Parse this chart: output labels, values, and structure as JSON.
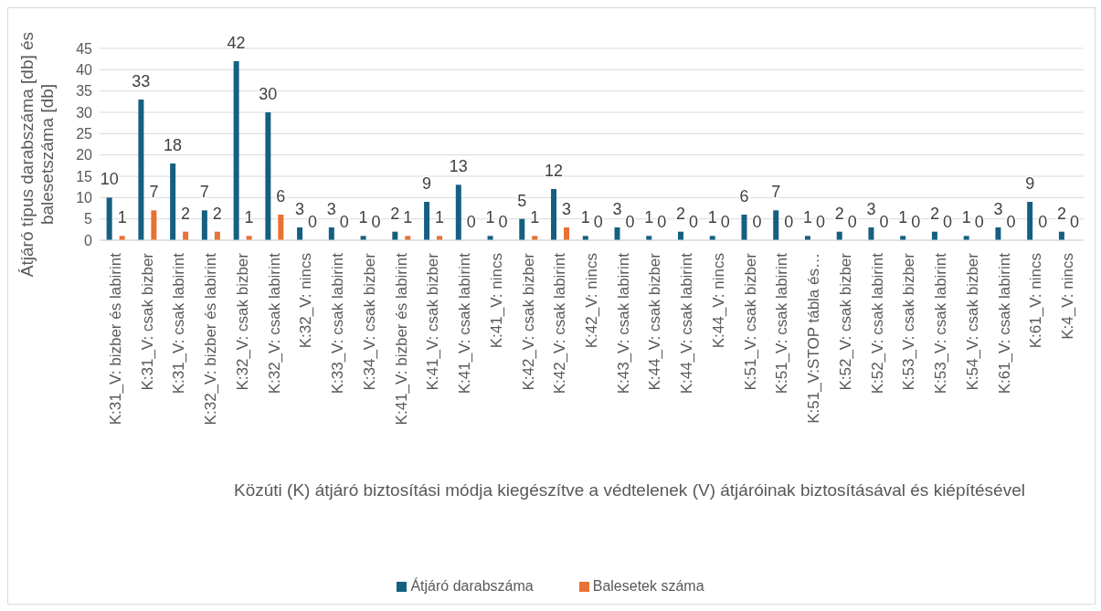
{
  "chart_data": {
    "type": "bar",
    "xlabel": "Közúti (K) átjáró biztosítási módja kiegészítve a védtelenek (V) átjáróinak biztosításával  és kiépítésével",
    "ylabel": "Átjáró típus darabszáma [db] és balesetszáma [db]",
    "categories": [
      "K:31_V: bizber és labirint",
      "K:31_V: csak bizber",
      "K:31_V: csak labirint",
      "K:32_V: bizber és labirint",
      "K:32_V: csak bizber",
      "K:32_V: csak labirint",
      "K:32_V: nincs",
      "K:33_V: csak labirint",
      "K:34_V: csak bizber",
      "K:41_V: bizber és labirint",
      "K:41_V: csak bizber",
      "K:41_V: csak labirint",
      "K:41_V: nincs",
      "K:42_V: csak bizber",
      "K:42_V: csak labirint",
      "K:42_V: nincs",
      "K:43_V: csak labirint",
      "K:44_V: csak bizber",
      "K:44_V: csak labirint",
      "K:44_V: nincs",
      "K:51_V: csak bizber",
      "K:51_V: csak labirint",
      "K:51_V:STOP tábla és…",
      "K:52_V: csak bizber",
      "K:52_V: csak labirint",
      "K:53_V: csak bizber",
      "K:53_V: csak labirint",
      "K:54_V: csak bizber",
      "K:61_V: csak labirint",
      "K:61_V: nincs",
      "K:4_V: nincs"
    ],
    "series": [
      {
        "name": "Átjáró darabszáma",
        "color": "#156082",
        "values": [
          10,
          33,
          18,
          7,
          42,
          30,
          3,
          3,
          1,
          2,
          9,
          13,
          1,
          5,
          12,
          1,
          3,
          1,
          2,
          1,
          6,
          7,
          1,
          2,
          3,
          1,
          2,
          1,
          3,
          9,
          2
        ]
      },
      {
        "name": "Balesetek száma",
        "color": "#e97132",
        "values": [
          1,
          7,
          2,
          2,
          1,
          6,
          0,
          0,
          0,
          1,
          1,
          0,
          0,
          1,
          3,
          0,
          0,
          0,
          0,
          0,
          0,
          0,
          0,
          0,
          0,
          0,
          0,
          0,
          0,
          0,
          0
        ]
      }
    ],
    "ylim": [
      0,
      45
    ],
    "yticks": [
      0,
      5,
      10,
      15,
      20,
      25,
      30,
      35,
      40,
      45
    ],
    "grid": "y",
    "legend": "bottom",
    "data_labels": true
  }
}
